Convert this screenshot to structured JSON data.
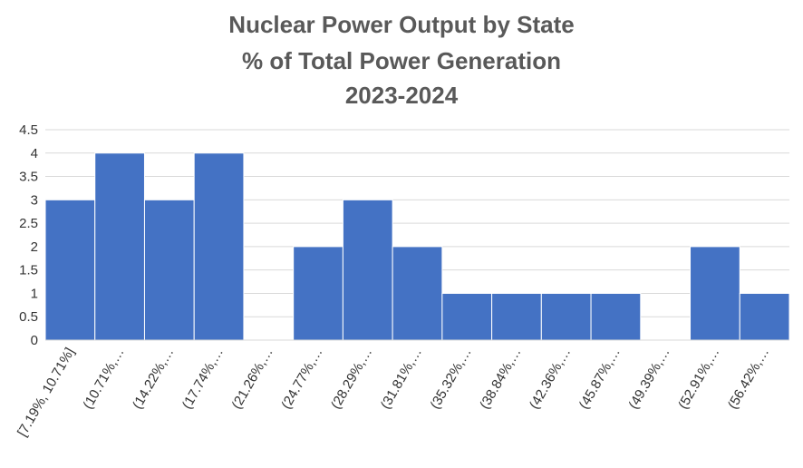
{
  "chart_data": {
    "type": "bar",
    "title_lines": [
      "Nuclear Power Output by State",
      "% of Total Power Generation",
      "2023-2024"
    ],
    "categories": [
      "[7.19%, 10.71%]",
      "(10.71%,…",
      "(14.22%,…",
      "(17.74%,…",
      "(21.26%,…",
      "(24.77%,…",
      "(28.29%,…",
      "(31.81%,…",
      "(35.32%,…",
      "(38.84%,…",
      "(42.36%,…",
      "(45.87%,…",
      "(49.39%,…",
      "(52.91%,…",
      "(56.42%,…"
    ],
    "values": [
      3,
      4,
      3,
      4,
      0,
      2,
      3,
      2,
      1,
      1,
      1,
      1,
      0,
      2,
      1
    ],
    "ylim": [
      0,
      4.5
    ],
    "yticks": [
      "0",
      "0.5",
      "1",
      "1.5",
      "2",
      "2.5",
      "3",
      "3.5",
      "4",
      "4.5"
    ],
    "xlabel": "",
    "ylabel": "",
    "grid": true,
    "bar_color": "#4472c4"
  }
}
